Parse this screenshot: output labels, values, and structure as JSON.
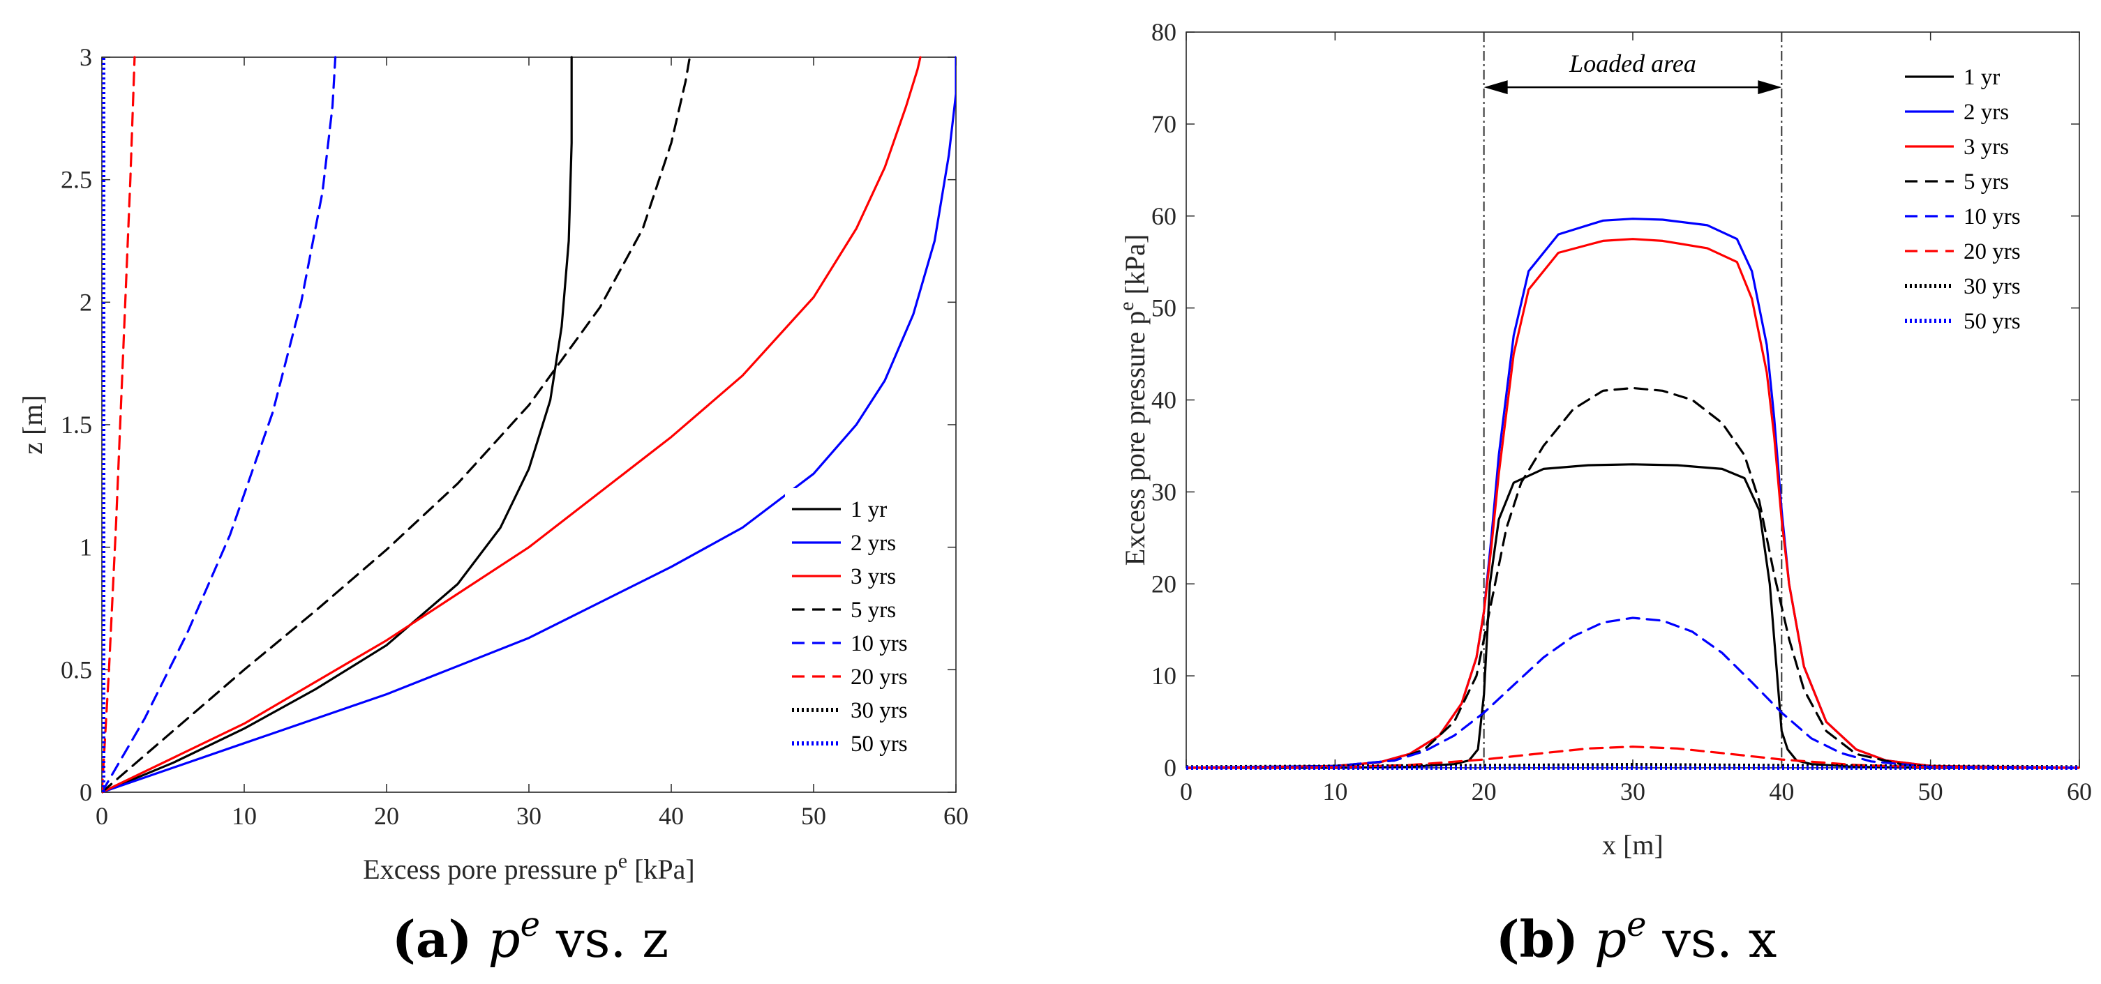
{
  "chart_data": [
    {
      "type": "line",
      "panel_label": "(a)",
      "caption_symbol": "p",
      "caption_sup": "e",
      "caption_suffix": " vs. z",
      "xlabel": "Excess pore pressure p",
      "xlabel_sup": "e",
      "xlabel_suffix": " [kPa]",
      "ylabel": "z [m]",
      "xlim": [
        0,
        60
      ],
      "ylim": [
        0,
        3
      ],
      "xticks": [
        0,
        10,
        20,
        30,
        40,
        50,
        60
      ],
      "yticks": [
        0,
        0.5,
        1,
        1.5,
        2,
        2.5,
        3
      ],
      "ytick_labels": [
        "0",
        "0.5",
        "1",
        "1.5",
        "2",
        "2.5",
        "3"
      ],
      "legend_position": "lower-right",
      "series": [
        {
          "name": "1 yr",
          "color": "#000000",
          "style": "solid",
          "x": [
            0,
            5,
            10,
            15,
            20,
            25,
            28,
            30,
            31.5,
            32.3,
            32.8,
            33,
            33
          ],
          "y": [
            0,
            0.12,
            0.26,
            0.42,
            0.6,
            0.85,
            1.08,
            1.32,
            1.6,
            1.9,
            2.25,
            2.65,
            3
          ]
        },
        {
          "name": "2 yrs",
          "color": "#0000ff",
          "style": "solid",
          "x": [
            0,
            10,
            20,
            30,
            40,
            45,
            50,
            53,
            55,
            57,
            58.5,
            59.5,
            60,
            60
          ],
          "y": [
            0,
            0.2,
            0.4,
            0.63,
            0.92,
            1.08,
            1.3,
            1.5,
            1.68,
            1.95,
            2.25,
            2.6,
            2.85,
            3
          ]
        },
        {
          "name": "3 yrs",
          "color": "#ff0000",
          "style": "solid",
          "x": [
            0,
            10,
            20,
            30,
            40,
            45,
            50,
            53,
            55,
            56.5,
            57.3,
            57.5
          ],
          "y": [
            0,
            0.28,
            0.62,
            1.0,
            1.45,
            1.7,
            2.02,
            2.3,
            2.55,
            2.8,
            2.95,
            3
          ]
        },
        {
          "name": "5 yrs",
          "color": "#000000",
          "style": "dashed",
          "x": [
            0,
            5,
            10,
            15,
            20,
            25,
            30,
            35,
            38,
            40,
            41,
            41.3
          ],
          "y": [
            0,
            0.25,
            0.5,
            0.74,
            0.99,
            1.26,
            1.58,
            1.98,
            2.3,
            2.65,
            2.9,
            3
          ]
        },
        {
          "name": "10 yrs",
          "color": "#0000ff",
          "style": "dashed",
          "x": [
            0,
            3,
            6,
            9,
            12,
            14,
            15.5,
            16.2,
            16.4
          ],
          "y": [
            0,
            0.3,
            0.65,
            1.05,
            1.55,
            2.0,
            2.45,
            2.8,
            3
          ]
        },
        {
          "name": "20 yrs",
          "color": "#ff0000",
          "style": "dashed",
          "x": [
            0,
            0.5,
            1.0,
            1.5,
            2.0,
            2.3
          ],
          "y": [
            0,
            0.5,
            1.1,
            1.8,
            2.5,
            3
          ]
        },
        {
          "name": "30 yrs",
          "color": "#000000",
          "style": "dotted",
          "x": [
            0.05,
            0.05
          ],
          "y": [
            0,
            3
          ]
        },
        {
          "name": "50 yrs",
          "color": "#0000ff",
          "style": "dotted",
          "x": [
            0.1,
            0.1
          ],
          "y": [
            0,
            3
          ]
        }
      ]
    },
    {
      "type": "line",
      "panel_label": "(b)",
      "caption_symbol": "p",
      "caption_sup": "e",
      "caption_suffix": " vs. x",
      "xlabel": "x [m]",
      "ylabel": "Excess pore pressure p",
      "ylabel_sup": "e",
      "ylabel_suffix": " [kPa]",
      "xlim": [
        0,
        60
      ],
      "ylim": [
        0,
        80
      ],
      "xticks": [
        0,
        10,
        20,
        30,
        40,
        50,
        60
      ],
      "yticks": [
        0,
        10,
        20,
        30,
        40,
        50,
        60,
        70,
        80
      ],
      "legend_position": "top-right",
      "annotation": {
        "text": "Loaded area",
        "x_from": 20,
        "x_to": 40,
        "y_arrow": 74
      },
      "series": [
        {
          "name": "1 yr",
          "color": "#000000",
          "style": "solid",
          "x": [
            0,
            10,
            15,
            18,
            19,
            19.6,
            20,
            20.4,
            21,
            22,
            24,
            27,
            30,
            33,
            36,
            37.5,
            38.5,
            39.2,
            39.6,
            40,
            40.4,
            41,
            42,
            45,
            50,
            60
          ],
          "y": [
            0,
            0,
            0.1,
            0.4,
            0.8,
            2,
            8,
            20,
            27,
            31,
            32.5,
            32.9,
            33,
            32.9,
            32.5,
            31.5,
            28,
            20,
            12,
            4,
            2,
            0.8,
            0.4,
            0.1,
            0,
            0
          ]
        },
        {
          "name": "2 yrs",
          "color": "#0000ff",
          "style": "solid",
          "x": [
            0,
            10,
            13,
            15,
            17,
            18.5,
            19.5,
            20,
            20.5,
            21,
            22,
            23,
            25,
            28,
            30,
            32,
            35,
            37,
            38,
            39,
            39.5,
            40,
            40.5,
            41.5,
            43,
            45,
            47,
            50,
            60
          ],
          "y": [
            0,
            0.2,
            0.6,
            1.5,
            3.5,
            7,
            12,
            17,
            25,
            34,
            47,
            54,
            58,
            59.5,
            59.7,
            59.6,
            59,
            57.5,
            54,
            46,
            38,
            28,
            20,
            11,
            5,
            2,
            0.8,
            0.2,
            0
          ]
        },
        {
          "name": "3 yrs",
          "color": "#ff0000",
          "style": "solid",
          "x": [
            0,
            10,
            13,
            15,
            17,
            18.5,
            19.5,
            20,
            20.5,
            21,
            22,
            23,
            25,
            28,
            30,
            32,
            35,
            37,
            38,
            39,
            39.5,
            40,
            40.5,
            41.5,
            43,
            45,
            47,
            50,
            60
          ],
          "y": [
            0,
            0.2,
            0.6,
            1.5,
            3.5,
            7,
            12,
            17,
            24,
            32,
            45,
            52,
            56,
            57.3,
            57.5,
            57.3,
            56.5,
            55,
            51,
            43,
            36,
            27,
            20,
            11,
            5,
            2,
            0.8,
            0.2,
            0
          ]
        },
        {
          "name": "5 yrs",
          "color": "#000000",
          "style": "dashed",
          "x": [
            0,
            10,
            14,
            16,
            18,
            19.5,
            20.5,
            21.5,
            22.5,
            24,
            26,
            28,
            30,
            32,
            34,
            36,
            37.5,
            38.5,
            39.5,
            40.5,
            41.5,
            43,
            45,
            48,
            50,
            60
          ],
          "y": [
            0,
            0.2,
            0.8,
            2,
            5,
            10,
            18,
            26,
            31,
            35,
            39,
            41,
            41.3,
            41,
            40,
            37.5,
            34,
            29,
            21,
            14,
            8.5,
            4,
            1.5,
            0.4,
            0.1,
            0
          ]
        },
        {
          "name": "10 yrs",
          "color": "#0000ff",
          "style": "dashed",
          "x": [
            0,
            10,
            14,
            16,
            18,
            20,
            22,
            24,
            26,
            28,
            30,
            32,
            34,
            36,
            38,
            40,
            42,
            44,
            46,
            50,
            60
          ],
          "y": [
            0,
            0.2,
            0.8,
            1.8,
            3.5,
            6,
            9,
            12,
            14.3,
            15.8,
            16.3,
            16,
            14.8,
            12.5,
            9.3,
            6,
            3.2,
            1.6,
            0.7,
            0.1,
            0
          ]
        },
        {
          "name": "20 yrs",
          "color": "#ff0000",
          "style": "dashed",
          "x": [
            0,
            10,
            15,
            20,
            24,
            27,
            30,
            33,
            36,
            40,
            45,
            50,
            60
          ],
          "y": [
            0,
            0.05,
            0.3,
            0.9,
            1.6,
            2.1,
            2.3,
            2.1,
            1.6,
            0.9,
            0.3,
            0.05,
            0
          ]
        },
        {
          "name": "30 yrs",
          "color": "#000000",
          "style": "dotted",
          "x": [
            0,
            20,
            30,
            40,
            60
          ],
          "y": [
            0.05,
            0.2,
            0.3,
            0.2,
            0.05
          ]
        },
        {
          "name": "50 yrs",
          "color": "#0000ff",
          "style": "dotted",
          "x": [
            0,
            60
          ],
          "y": [
            0,
            0
          ]
        }
      ]
    }
  ]
}
